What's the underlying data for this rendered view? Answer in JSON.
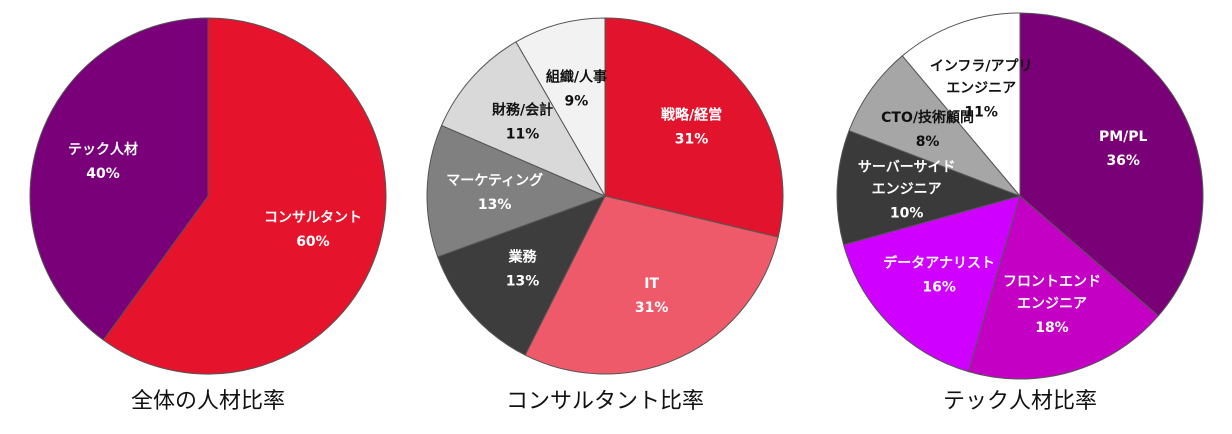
{
  "chart_data": [
    {
      "type": "pie",
      "title": "全体の人材比率",
      "categories": [
        "コンサルタント",
        "テック人材"
      ],
      "values": [
        60,
        40
      ],
      "value_labels": [
        "60%",
        "40%"
      ],
      "colors": [
        "#e5132c",
        "#7a007a"
      ]
    },
    {
      "type": "pie",
      "title": "コンサルタント比率",
      "categories": [
        "戦略/経営",
        "IT",
        "業務",
        "マーケティング",
        "財務/会計",
        "組織/人事"
      ],
      "values": [
        31,
        31,
        13,
        13,
        11,
        9
      ],
      "value_labels": [
        "31%",
        "31%",
        "13%",
        "13%",
        "11%",
        "9%"
      ],
      "colors": [
        "#e2142d",
        "#ef5a6a",
        "#3d3d3d",
        "#808080",
        "#d9d9d9",
        "#f2f2f2"
      ]
    },
    {
      "type": "pie",
      "title": "テック人材比率",
      "categories": [
        "PM/PL",
        "フロントエンド\nエンジニア",
        "データアナリスト",
        "サーバーサイド\nエンジニア",
        "CTO/技術顧問",
        "インフラ/アプリ\nエンジニア"
      ],
      "values": [
        36,
        18,
        16,
        10,
        8,
        11
      ],
      "value_labels": [
        "36%",
        "18%",
        "16%",
        "10%",
        "8%",
        "11%"
      ],
      "colors": [
        "#7a0078",
        "#c400c4",
        "#cf00ff",
        "#3a3a3a",
        "#a6a6a6",
        "#ffffff"
      ]
    }
  ]
}
